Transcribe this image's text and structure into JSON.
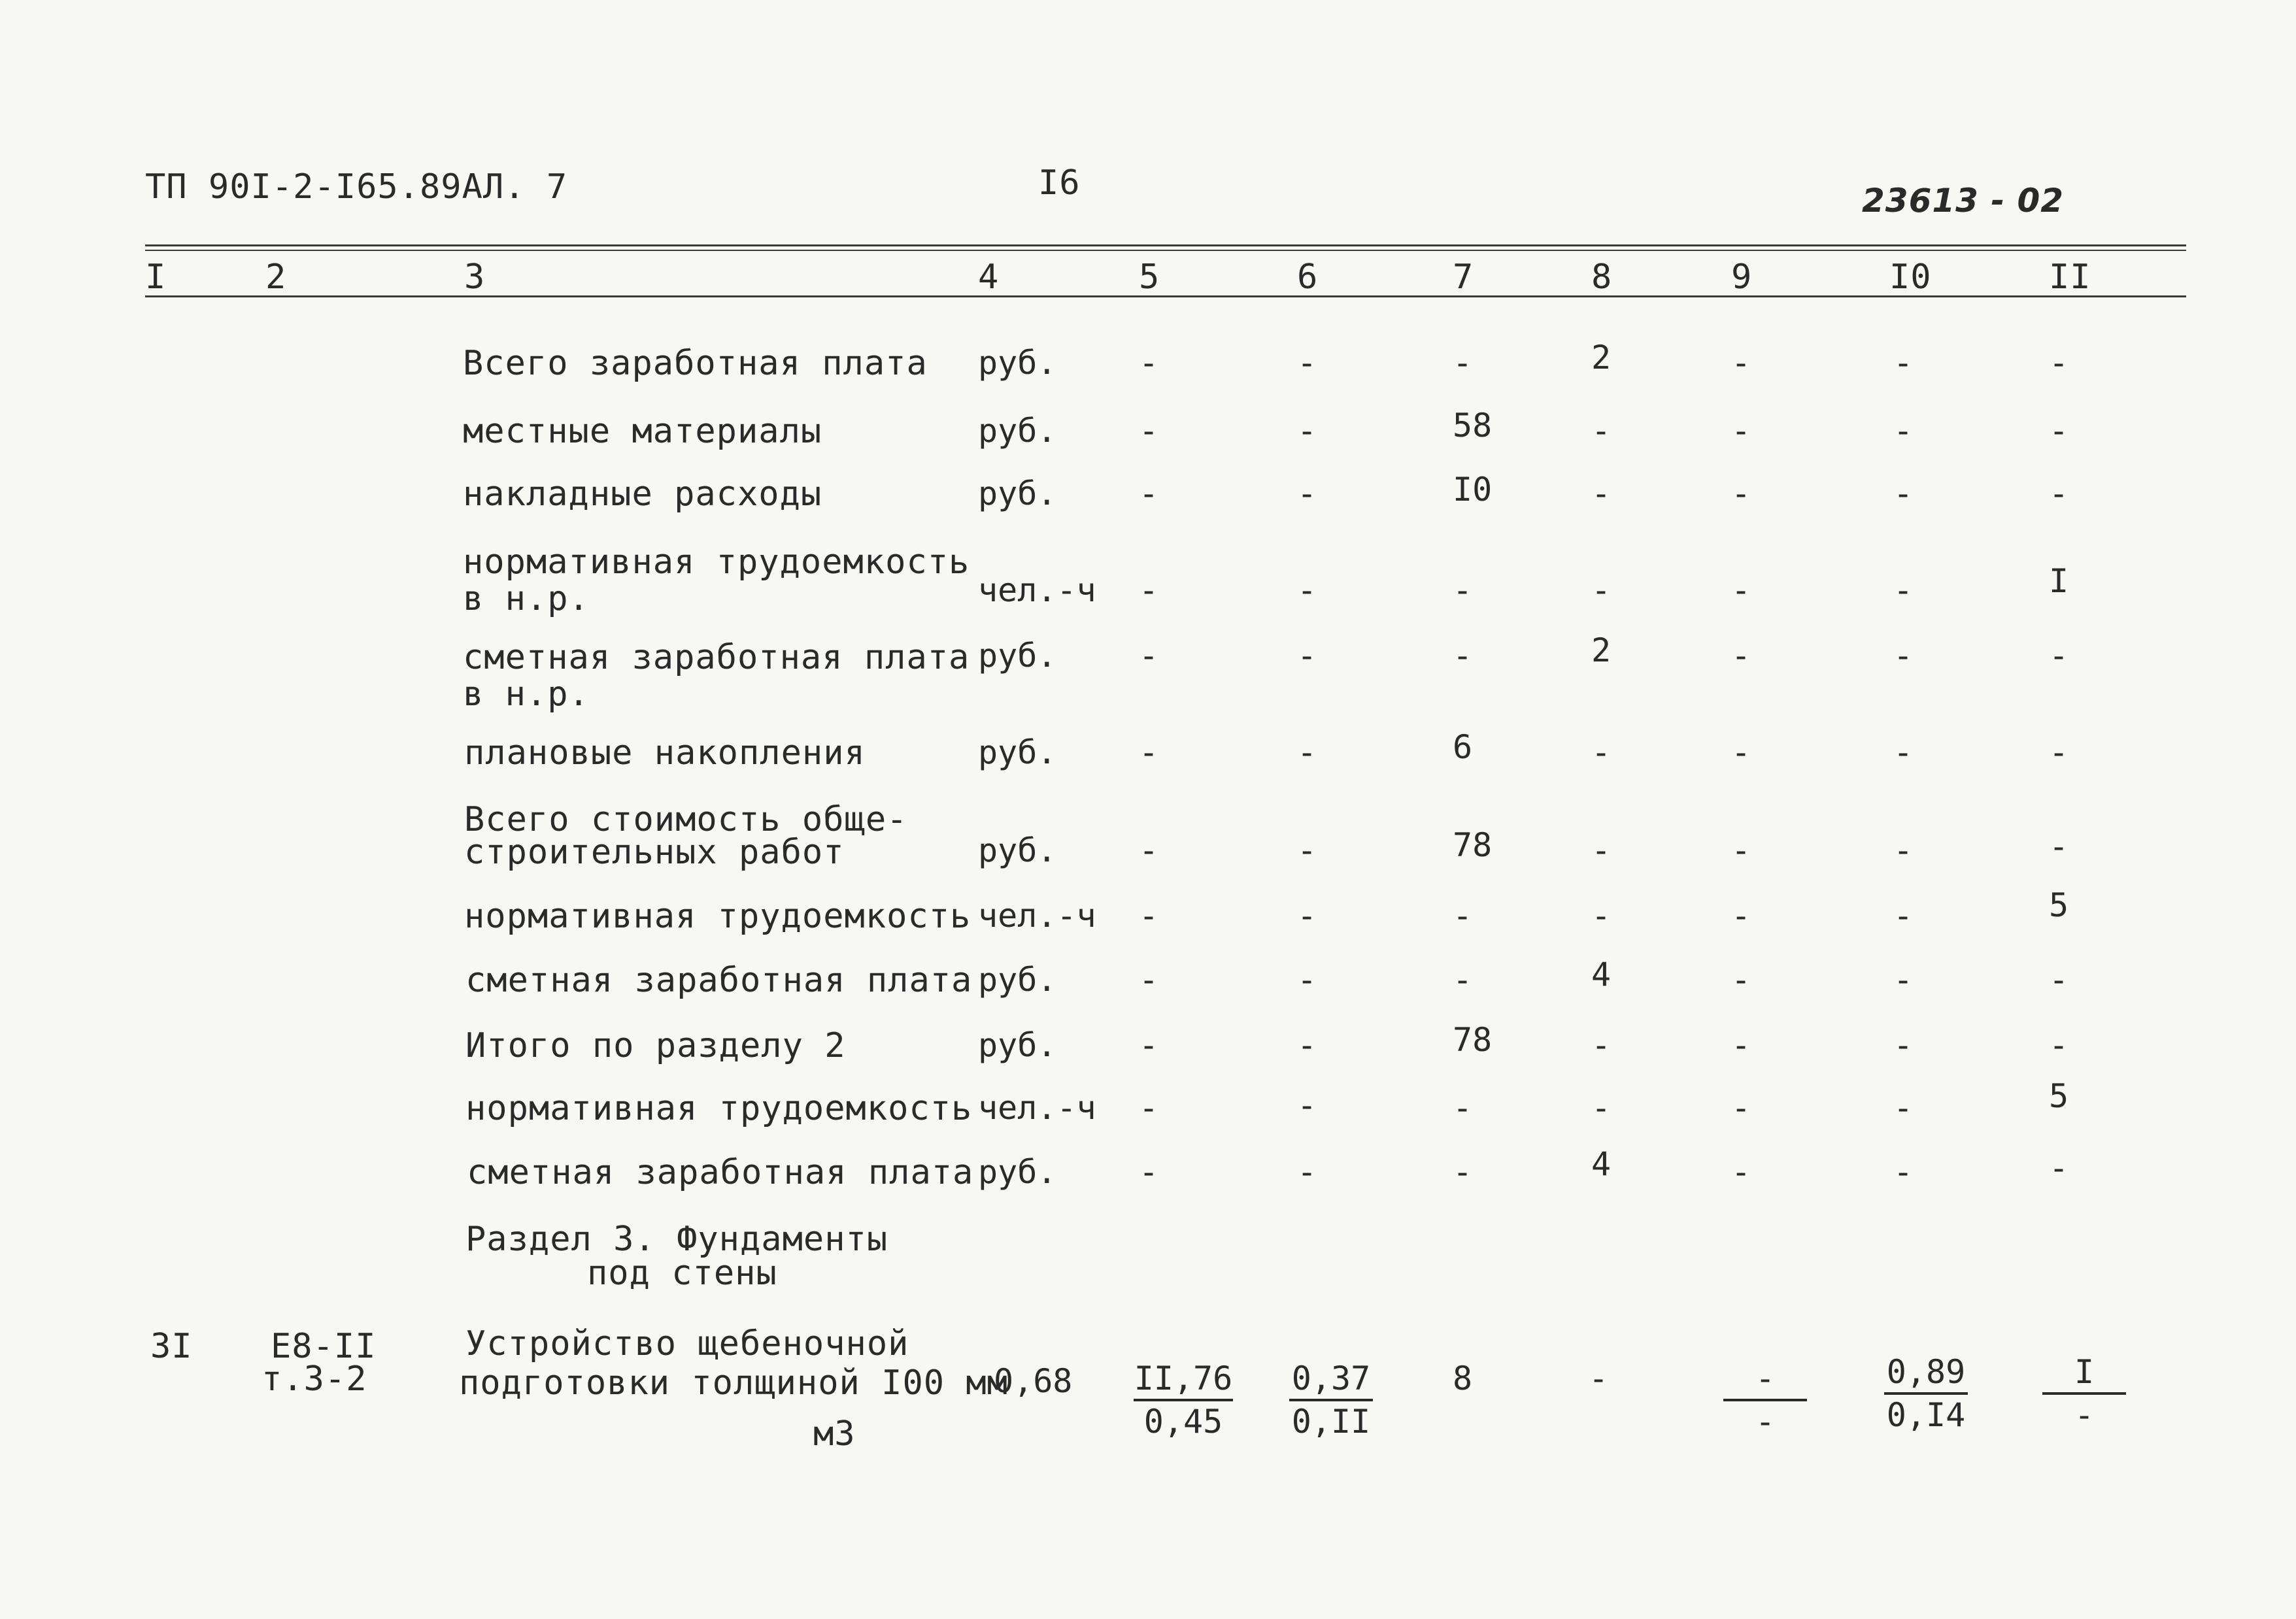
{
  "header": {
    "doc_code": "ТП 90I-2-I65.89АЛ. 7",
    "page_number": "I6",
    "stamp": "23613 - 02"
  },
  "columns": [
    "I",
    "2",
    "3",
    "4",
    "5",
    "6",
    "7",
    "8",
    "9",
    "I0",
    "II"
  ],
  "rows": [
    {
      "label": "Всего заработная плата",
      "unit": "руб.",
      "c5": "-",
      "c6": "-",
      "c7": "-",
      "c8": "2",
      "c9": "-",
      "c10": "-",
      "c11": "-"
    },
    {
      "label": "местные материалы",
      "unit": "руб.",
      "c5": "-",
      "c6": "-",
      "c7": "58",
      "c8": "-",
      "c9": "-",
      "c10": "-",
      "c11": "-"
    },
    {
      "label": "накладные расходы",
      "unit": "руб.",
      "c5": "-",
      "c6": "-",
      "c7": "I0",
      "c8": "-",
      "c9": "-",
      "c10": "-",
      "c11": "-"
    },
    {
      "label1": "нормативная трудоемкость",
      "label2": "в н.р.",
      "unit": "чел.-ч",
      "c5": "-",
      "c6": "-",
      "c7": "-",
      "c8": "-",
      "c9": "-",
      "c10": "-",
      "c11": "I"
    },
    {
      "label1": "сметная заработная плата",
      "label2": "в н.р.",
      "unit": "руб.",
      "c5": "-",
      "c6": "-",
      "c7": "-",
      "c8": "2",
      "c9": "-",
      "c10": "-",
      "c11": "-"
    },
    {
      "label": "плановые накопления",
      "unit": "руб.",
      "c5": "-",
      "c6": "-",
      "c7": "6",
      "c8": "-",
      "c9": "-",
      "c10": "-",
      "c11": "-"
    },
    {
      "label1": "Всего стоимость обще-",
      "label2": "строительных работ",
      "unit": "руб.",
      "c5": "-",
      "c6": "-",
      "c7": "78",
      "c8": "-",
      "c9": "-",
      "c10": "-",
      "c11": "-"
    },
    {
      "label": "нормативная трудоемкость",
      "unit": "чел.-ч",
      "c5": "-",
      "c6": "-",
      "c7": "-",
      "c8": "-",
      "c9": "-",
      "c10": "-",
      "c11": "5"
    },
    {
      "label": "сметная заработная плата",
      "unit": "руб.",
      "c5": "-",
      "c6": "-",
      "c7": "-",
      "c8": "4",
      "c9": "-",
      "c10": "-",
      "c11": "-"
    },
    {
      "label": "Итого по разделу 2",
      "unit": "руб.",
      "c5": "-",
      "c6": "-",
      "c7": "78",
      "c8": "-",
      "c9": "-",
      "c10": "-",
      "c11": "-"
    },
    {
      "label": "нормативная трудоемкость",
      "unit": "чел.-ч",
      "c5": "-",
      "c6": "-",
      "c7": "-",
      "c8": "-",
      "c9": "-",
      "c10": "-",
      "c11": "5"
    },
    {
      "label": "сметная заработная плата",
      "unit": "руб.",
      "c5": "-",
      "c6": "-",
      "c7": "-",
      "c8": "4",
      "c9": "-",
      "c10": "-",
      "c11": "-"
    }
  ],
  "section": {
    "line1": "Раздел 3. Фундаменты",
    "line2": "под стены"
  },
  "item31": {
    "number": "3I",
    "code1": "Е8-II",
    "code2": "т.3-2",
    "desc1": "Устройство щебеночной",
    "desc2": "подготовки толщиной I00 мм",
    "qty": "0,68",
    "unit": "м3",
    "c5_num": "II,76",
    "c5_den": "0,45",
    "c6_num": "0,37",
    "c6_den": "0,II",
    "c7": "8",
    "c8": "-",
    "c9_num": "-",
    "c9_den": "-",
    "c10_num": "0,89",
    "c10_den": "0,I4",
    "c11_num": "I",
    "c11_den": "-"
  }
}
